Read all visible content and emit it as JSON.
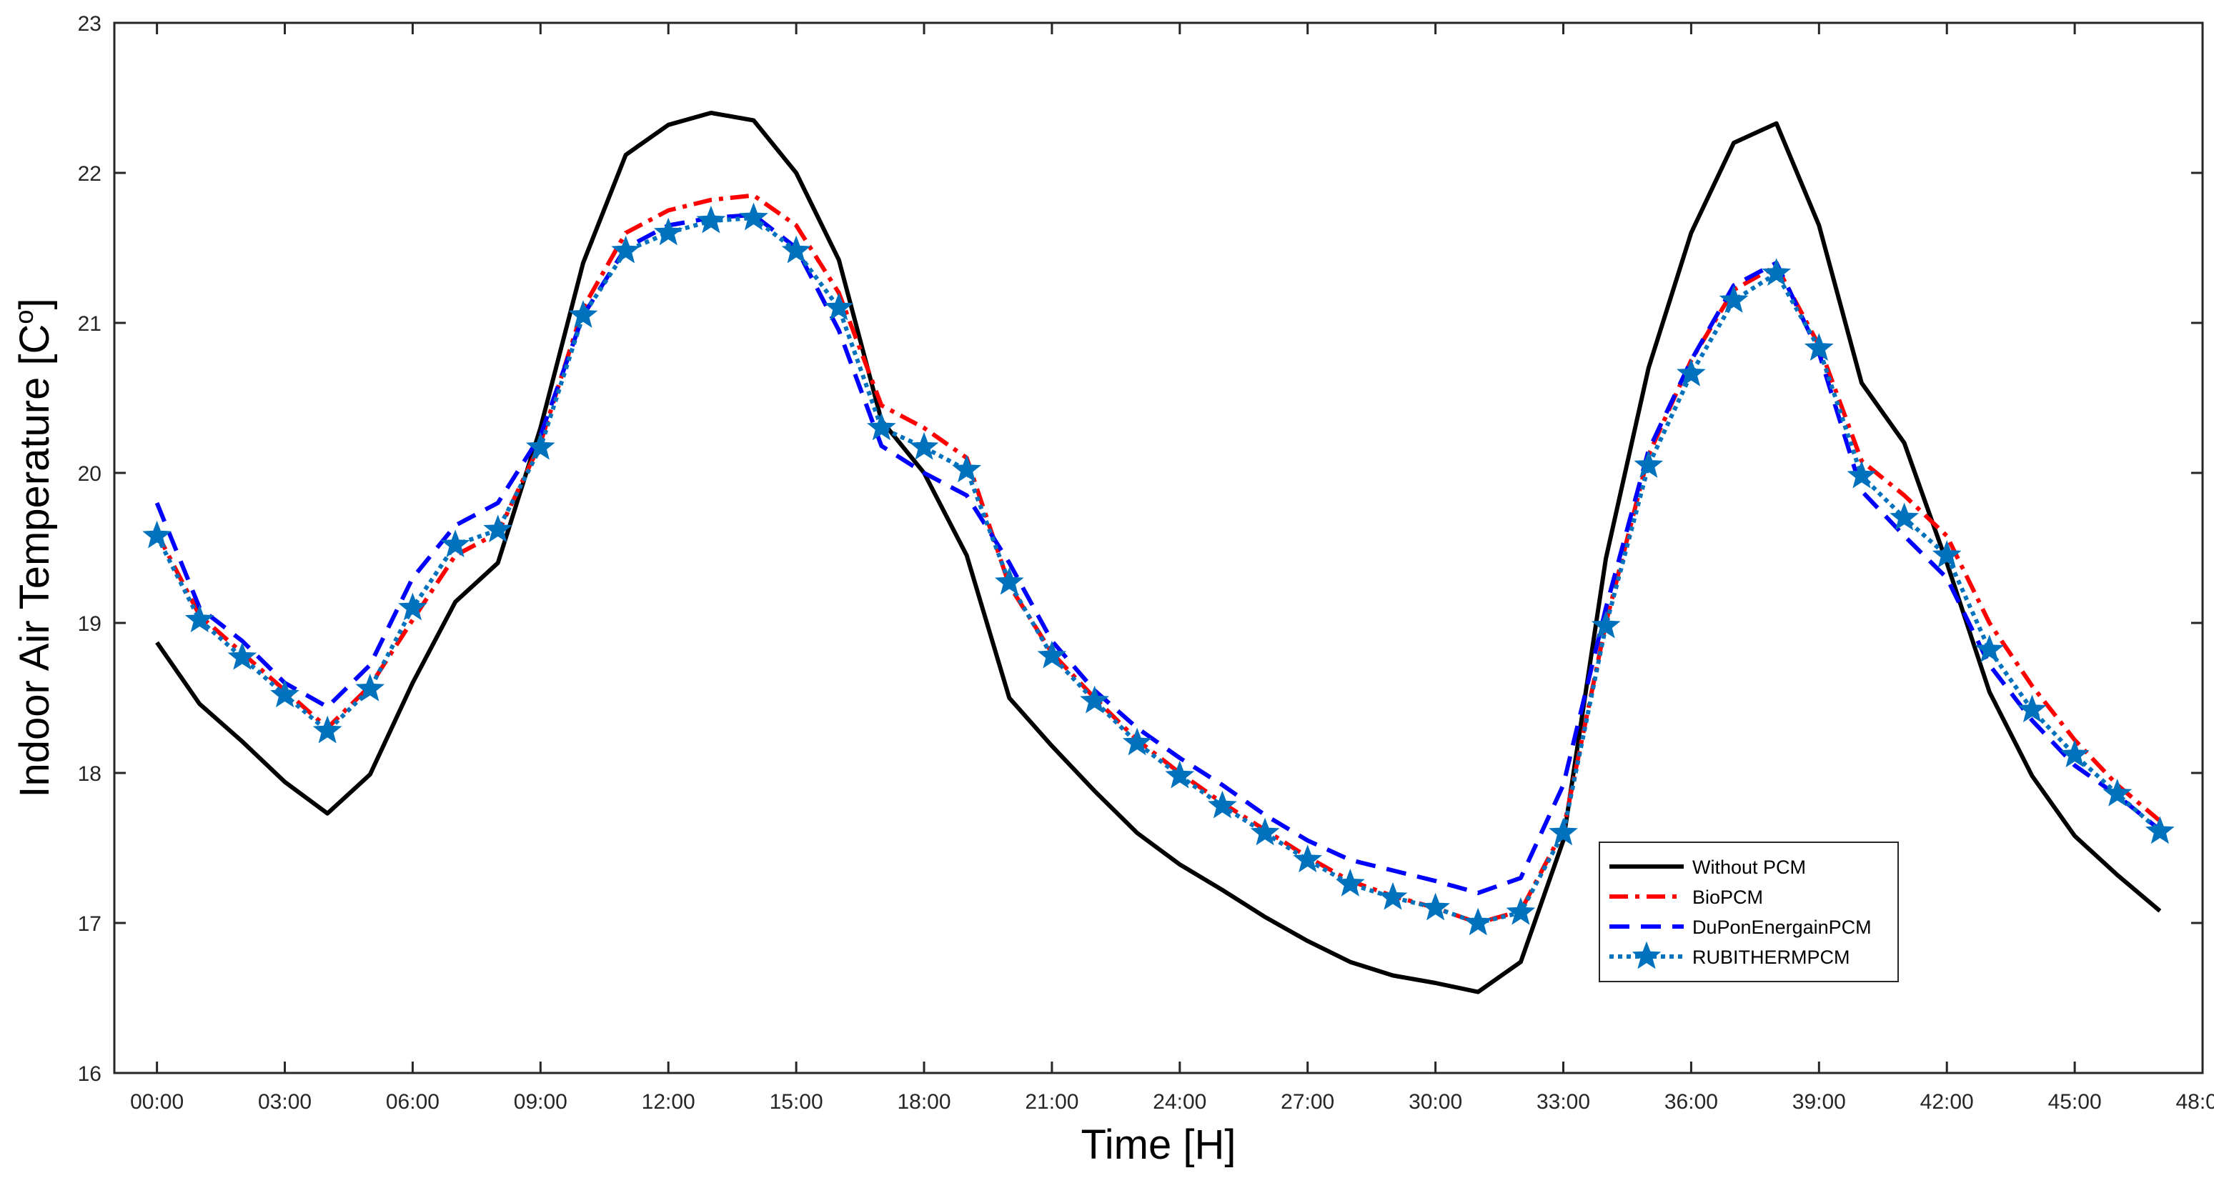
{
  "chart_data": {
    "type": "line",
    "title": "",
    "xlabel": "Time [H]",
    "ylabel": "Indoor Air Temperature [C",
    "ylabel_superscript": "o",
    "ylabel_suffix": "]",
    "xlim": [
      -1,
      48
    ],
    "ylim": [
      16,
      23
    ],
    "xticks": [
      0,
      3,
      6,
      9,
      12,
      15,
      18,
      21,
      24,
      27,
      30,
      33,
      36,
      39,
      42,
      45,
      48
    ],
    "xtick_labels": [
      "00:00",
      "03:00",
      "06:00",
      "09:00",
      "12:00",
      "15:00",
      "18:00",
      "21:00",
      "24:00",
      "27:00",
      "30:00",
      "33:00",
      "36:00",
      "39:00",
      "42:00",
      "45:00",
      "48:00"
    ],
    "yticks": [
      16,
      17,
      18,
      19,
      20,
      21,
      22,
      23
    ],
    "ytick_labels": [
      "16",
      "17",
      "18",
      "19",
      "20",
      "21",
      "22",
      "23"
    ],
    "grid": false,
    "legend_position": "bottom-right",
    "x": [
      0,
      1,
      2,
      3,
      4,
      5,
      6,
      7,
      8,
      9,
      10,
      11,
      12,
      13,
      14,
      15,
      16,
      17,
      18,
      19,
      20,
      21,
      22,
      23,
      24,
      25,
      26,
      27,
      28,
      29,
      30,
      31,
      32,
      33,
      34,
      35,
      36,
      37,
      38,
      39,
      40,
      41,
      42,
      43,
      44,
      45,
      46,
      47
    ],
    "series": [
      {
        "name": "Without PCM",
        "color": "#000000",
        "style": "solid",
        "values": [
          18.87,
          18.46,
          18.21,
          17.94,
          17.73,
          17.99,
          18.6,
          19.14,
          19.4,
          20.3,
          21.4,
          22.12,
          22.32,
          22.4,
          22.35,
          22.0,
          21.42,
          20.35,
          20.0,
          19.45,
          18.5,
          18.18,
          17.88,
          17.6,
          17.39,
          17.22,
          17.04,
          16.88,
          16.74,
          16.65,
          16.6,
          16.54,
          16.74,
          17.55,
          19.43,
          20.7,
          21.6,
          22.2,
          22.33,
          21.65,
          20.6,
          20.2,
          19.4,
          18.54,
          17.98,
          17.58,
          17.32,
          17.08
        ]
      },
      {
        "name": "BioPCM",
        "color": "#ff0000",
        "style": "dashdot",
        "values": [
          19.6,
          19.05,
          18.8,
          18.55,
          18.3,
          18.58,
          19.02,
          19.45,
          19.6,
          20.2,
          21.1,
          21.6,
          21.75,
          21.82,
          21.85,
          21.65,
          21.2,
          20.45,
          20.3,
          20.1,
          19.25,
          18.8,
          18.5,
          18.22,
          18.0,
          17.8,
          17.62,
          17.44,
          17.28,
          17.18,
          17.1,
          17.0,
          17.08,
          17.62,
          19.0,
          20.12,
          20.75,
          21.22,
          21.38,
          20.85,
          20.08,
          19.85,
          19.58,
          19.0,
          18.58,
          18.22,
          17.92,
          17.68
        ]
      },
      {
        "name": "DuPonEnergainPCM",
        "color": "#0000ff",
        "style": "dashed",
        "values": [
          19.8,
          19.1,
          18.88,
          18.6,
          18.44,
          18.72,
          19.3,
          19.65,
          19.8,
          20.25,
          21.05,
          21.5,
          21.65,
          21.7,
          21.72,
          21.5,
          20.95,
          20.18,
          20.0,
          19.85,
          19.4,
          18.88,
          18.55,
          18.3,
          18.1,
          17.92,
          17.72,
          17.55,
          17.42,
          17.35,
          17.28,
          17.2,
          17.3,
          17.92,
          19.1,
          20.15,
          20.75,
          21.25,
          21.4,
          20.8,
          19.88,
          19.58,
          19.3,
          18.72,
          18.35,
          18.05,
          17.85,
          17.62
        ]
      },
      {
        "name": "RUBITHERMPCM",
        "color": "#0072bd",
        "style": "dotted-star",
        "values": [
          19.58,
          19.02,
          18.77,
          18.52,
          18.28,
          18.56,
          19.1,
          19.52,
          19.62,
          20.17,
          21.05,
          21.48,
          21.6,
          21.68,
          21.7,
          21.48,
          21.1,
          20.3,
          20.17,
          20.02,
          19.27,
          18.78,
          18.48,
          18.2,
          17.98,
          17.78,
          17.6,
          17.42,
          17.26,
          17.17,
          17.1,
          17.0,
          17.07,
          17.6,
          18.98,
          20.05,
          20.66,
          21.15,
          21.33,
          20.83,
          19.98,
          19.7,
          19.45,
          18.82,
          18.42,
          18.12,
          17.86,
          17.61
        ]
      }
    ]
  }
}
